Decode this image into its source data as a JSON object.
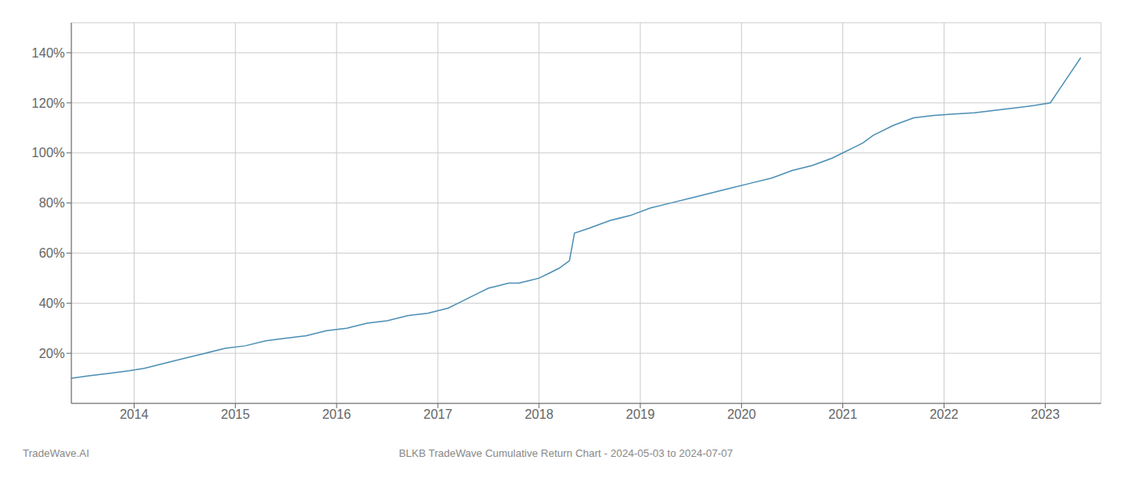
{
  "chart_data": {
    "type": "line",
    "title": "BLKB TradeWave Cumulative Return Chart - 2024-05-03 to 2024-07-07",
    "annotations": [
      "TradeWave.AI"
    ],
    "color": "#4d8fb5",
    "grid": true,
    "x": [
      2013.38,
      2013.55,
      2013.75,
      2013.95,
      2014.1,
      2014.3,
      2014.5,
      2014.7,
      2014.9,
      2015.1,
      2015.3,
      2015.5,
      2015.7,
      2015.9,
      2016.1,
      2016.3,
      2016.5,
      2016.7,
      2016.9,
      2017.1,
      2017.2,
      2017.3,
      2017.4,
      2017.5,
      2017.6,
      2017.7,
      2017.8,
      2017.9,
      2018.0,
      2018.1,
      2018.2,
      2018.3,
      2018.35,
      2018.5,
      2018.7,
      2018.9,
      2019.1,
      2019.3,
      2019.5,
      2019.7,
      2019.9,
      2020.1,
      2020.3,
      2020.5,
      2020.7,
      2020.9,
      2021.0,
      2021.1,
      2021.2,
      2021.3,
      2021.5,
      2021.7,
      2021.9,
      2022.1,
      2022.3,
      2022.5,
      2022.7,
      2022.9,
      2023.05,
      2023.15,
      2023.25,
      2023.35
    ],
    "values": [
      10,
      11,
      12,
      13,
      14,
      16,
      18,
      20,
      22,
      23,
      25,
      26,
      27,
      29,
      30,
      32,
      33,
      35,
      36,
      38,
      40,
      42,
      44,
      46,
      47,
      48,
      48,
      49,
      50,
      52,
      54,
      57,
      68,
      70,
      73,
      75,
      78,
      80,
      82,
      84,
      86,
      88,
      90,
      93,
      95,
      98,
      100,
      102,
      104,
      107,
      111,
      114,
      115,
      115.5,
      116,
      117,
      118,
      119,
      120,
      126,
      132,
      138
    ],
    "xlim": [
      2013.38,
      2023.55
    ],
    "xticks": [
      2014,
      2015,
      2016,
      2017,
      2018,
      2019,
      2020,
      2021,
      2022,
      2023
    ],
    "ylim": [
      0,
      152
    ],
    "yticks": [
      {
        "value": 20,
        "label": "20%"
      },
      {
        "value": 40,
        "label": "40%"
      },
      {
        "value": 60,
        "label": "60%"
      },
      {
        "value": 80,
        "label": "80%"
      },
      {
        "value": 100,
        "label": "100%"
      },
      {
        "value": 120,
        "label": "120%"
      },
      {
        "value": 140,
        "label": "140%"
      }
    ]
  }
}
